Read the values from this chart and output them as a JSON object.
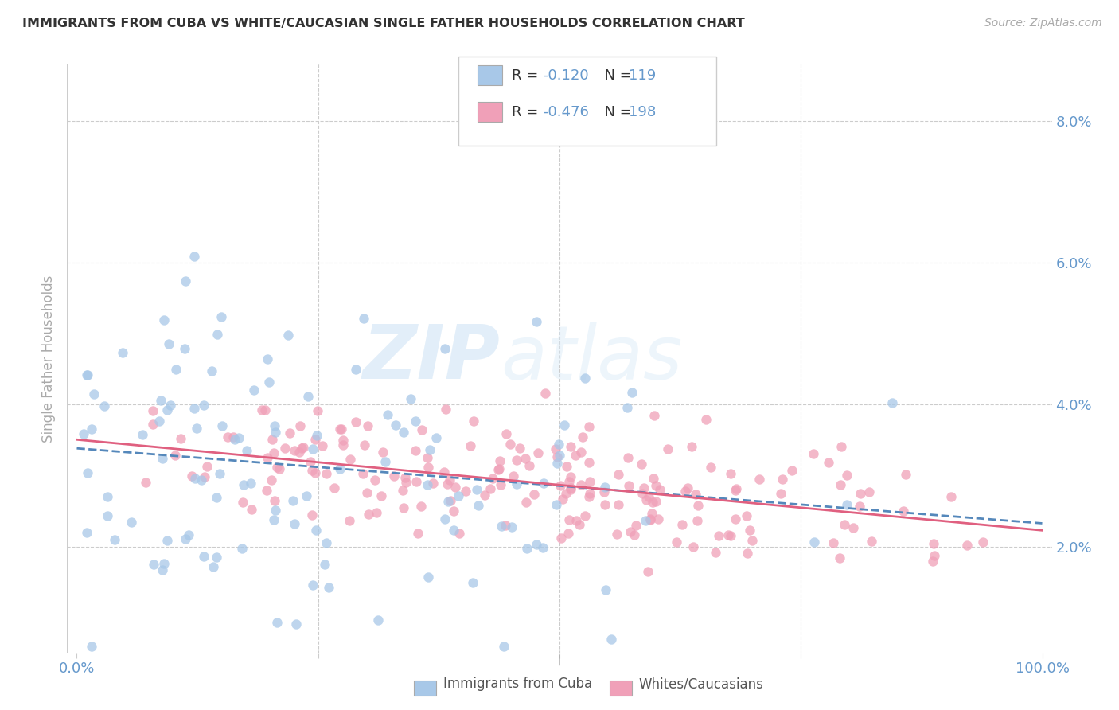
{
  "title": "IMMIGRANTS FROM CUBA VS WHITE/CAUCASIAN SINGLE FATHER HOUSEHOLDS CORRELATION CHART",
  "source": "Source: ZipAtlas.com",
  "ylabel": "Single Father Households",
  "yticks": [
    "2.0%",
    "4.0%",
    "6.0%",
    "8.0%"
  ],
  "ytick_vals": [
    0.02,
    0.04,
    0.06,
    0.08
  ],
  "ymin": 0.005,
  "ymax": 0.088,
  "xmin": -0.01,
  "xmax": 1.01,
  "legend1_R": "R = -0.120",
  "legend1_N": "N = 119",
  "legend2_R": "R = -0.476",
  "legend2_N": "N = 198",
  "legend_item1": "Immigrants from Cuba",
  "legend_item2": "Whites/Caucasians",
  "color_blue": "#a8c8e8",
  "color_pink": "#f0a0b8",
  "line_blue": "#5588bb",
  "line_pink": "#e06080",
  "watermark_zip": "ZIP",
  "watermark_atlas": "atlas",
  "title_color": "#333333",
  "axis_label_color": "#6699cc",
  "tick_color": "#999999",
  "background_color": "#ffffff",
  "seed": 7,
  "n_blue": 119,
  "n_pink": 198,
  "R_blue": -0.12,
  "R_pink": -0.476
}
